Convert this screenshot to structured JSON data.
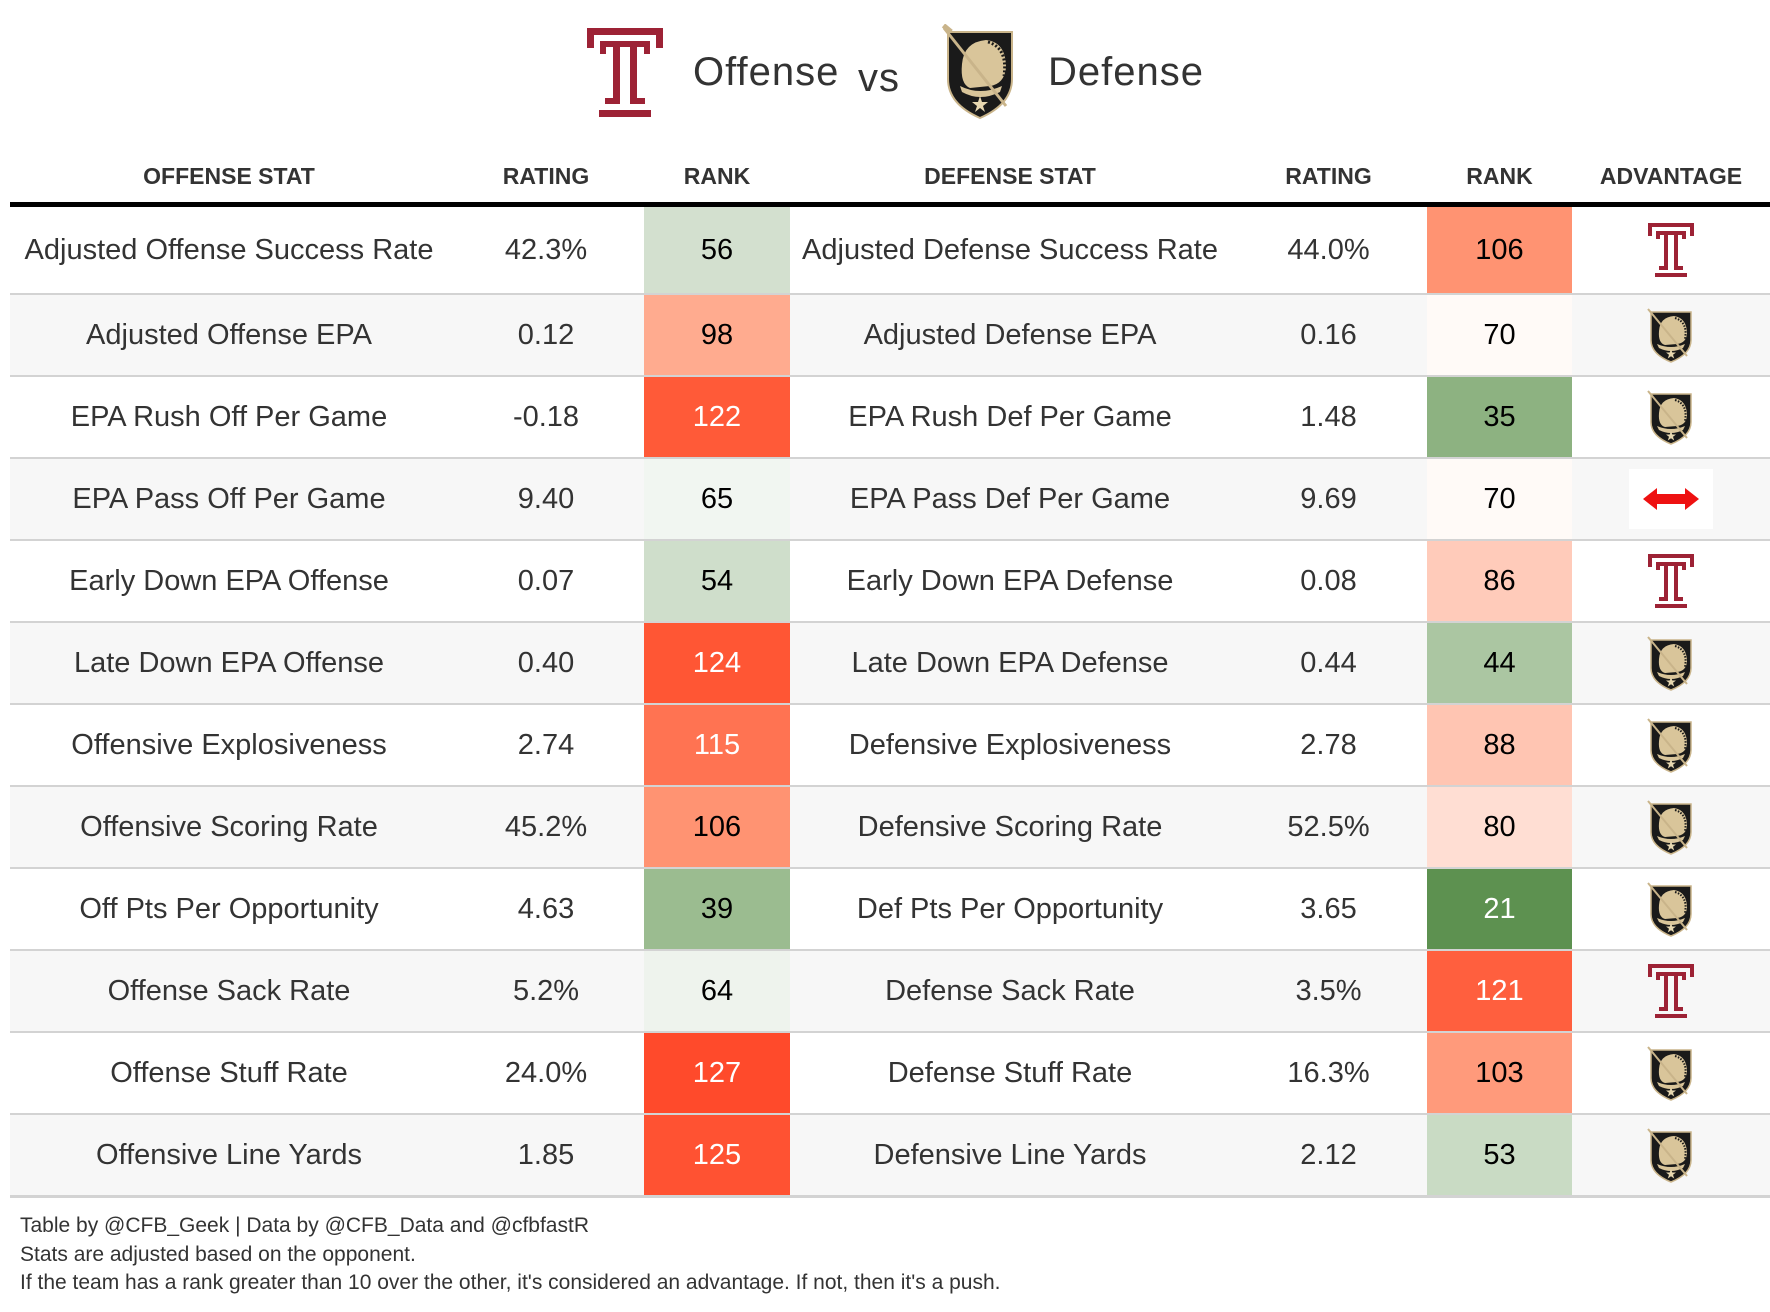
{
  "title": {
    "offense_team_logo": "temple-t-logo",
    "offense_word": "Offense",
    "vs_word": "vs",
    "defense_team_logo": "army-knight-logo",
    "defense_word": "Defense"
  },
  "columns": {
    "offense_stat": "OFFENSE STAT",
    "offense_rating": "RATING",
    "offense_rank": "RANK",
    "defense_stat": "DEFENSE STAT",
    "defense_rating": "RATING",
    "defense_rank": "RANK",
    "advantage": "ADVANTAGE"
  },
  "colors": {
    "temple_cherry": "#9d2235",
    "army_black": "#1a1a1a",
    "army_gold": "#d3bc8d",
    "push_arrow": "#ee1111",
    "header_rule": "#000000",
    "row_alt": "#f7f7f7"
  },
  "rows": [
    {
      "off_stat": "Adjusted Offense Success Rate",
      "off_rating": "42.3%",
      "off_rank": "56",
      "off_rank_color": "#d3e0cf",
      "off_rank_light": false,
      "def_stat": "Adjusted Defense Success Rate",
      "def_rating": "44.0%",
      "def_rank": "106",
      "def_rank_color": "#ff9372",
      "def_rank_light": false,
      "advantage": "temple"
    },
    {
      "off_stat": "Adjusted Offense EPA",
      "off_rating": "0.12",
      "off_rank": "98",
      "off_rank_color": "#ffab8f",
      "off_rank_light": false,
      "def_stat": "Adjusted Defense EPA",
      "def_rating": "0.16",
      "def_rank": "70",
      "def_rank_color": "#fffaf7",
      "def_rank_light": false,
      "advantage": "army"
    },
    {
      "off_stat": "EPA Rush Off Per Game",
      "off_rating": "-0.18",
      "off_rank": "122",
      "off_rank_color": "#ff5a38",
      "off_rank_light": true,
      "def_stat": "EPA Rush Def Per Game",
      "def_rating": "1.48",
      "def_rank": "35",
      "def_rank_color": "#8db281",
      "def_rank_light": false,
      "advantage": "army"
    },
    {
      "off_stat": "EPA Pass Off Per Game",
      "off_rating": "9.40",
      "off_rank": "65",
      "off_rank_color": "#f1f6f1",
      "off_rank_light": false,
      "def_stat": "EPA Pass Def Per Game",
      "def_rating": "9.69",
      "def_rank": "70",
      "def_rank_color": "#fffaf7",
      "def_rank_light": false,
      "advantage": "push"
    },
    {
      "off_stat": "Early Down EPA Offense",
      "off_rating": "0.07",
      "off_rank": "54",
      "off_rank_color": "#cfdecb",
      "off_rank_light": false,
      "def_stat": "Early Down EPA Defense",
      "def_rating": "0.08",
      "def_rank": "86",
      "def_rank_color": "#ffcbba",
      "def_rank_light": false,
      "advantage": "temple"
    },
    {
      "off_stat": "Late Down EPA Offense",
      "off_rating": "0.40",
      "off_rank": "124",
      "off_rank_color": "#ff5634",
      "off_rank_light": true,
      "def_stat": "Late Down EPA Defense",
      "def_rating": "0.44",
      "def_rank": "44",
      "def_rank_color": "#abc6a2",
      "def_rank_light": false,
      "advantage": "army"
    },
    {
      "off_stat": "Offensive Explosiveness",
      "off_rating": "2.74",
      "off_rank": "115",
      "off_rank_color": "#ff7352",
      "off_rank_light": true,
      "def_stat": "Defensive Explosiveness",
      "def_rating": "2.78",
      "def_rank": "88",
      "def_rank_color": "#ffc5b2",
      "def_rank_light": false,
      "advantage": "army"
    },
    {
      "off_stat": "Offensive Scoring Rate",
      "off_rating": "45.2%",
      "off_rank": "106",
      "off_rank_color": "#ff9372",
      "off_rank_light": false,
      "def_stat": "Defensive Scoring Rate",
      "def_rating": "52.5%",
      "def_rank": "80",
      "def_rank_color": "#ffded3",
      "def_rank_light": false,
      "advantage": "army"
    },
    {
      "off_stat": "Off Pts Per Opportunity",
      "off_rating": "4.63",
      "off_rank": "39",
      "off_rank_color": "#9bbc90",
      "off_rank_light": false,
      "def_stat": "Def Pts Per Opportunity",
      "def_rating": "3.65",
      "def_rank": "21",
      "def_rank_color": "#5d9150",
      "def_rank_light": true,
      "advantage": "army"
    },
    {
      "off_stat": "Offense Sack Rate",
      "off_rating": "5.2%",
      "off_rank": "64",
      "off_rank_color": "#eef3ed",
      "off_rank_light": false,
      "def_stat": "Defense Sack Rate",
      "def_rating": "3.5%",
      "def_rank": "121",
      "def_rank_color": "#ff5f3e",
      "def_rank_light": true,
      "advantage": "temple"
    },
    {
      "off_stat": "Offense Stuff Rate",
      "off_rating": "24.0%",
      "off_rank": "127",
      "off_rank_color": "#ff4a2b",
      "off_rank_light": true,
      "def_stat": "Defense Stuff Rate",
      "def_rating": "16.3%",
      "def_rank": "103",
      "def_rank_color": "#ff9a7b",
      "def_rank_light": false,
      "advantage": "army"
    },
    {
      "off_stat": "Offensive Line Yards",
      "off_rating": "1.85",
      "off_rank": "125",
      "off_rank_color": "#ff5232",
      "off_rank_light": true,
      "def_stat": "Defensive Line Yards",
      "def_rating": "2.12",
      "def_rank": "53",
      "def_rank_color": "#c9dbc4",
      "def_rank_light": false,
      "advantage": "army"
    }
  ],
  "footer": {
    "line1": "Table by @CFB_Geek | Data by @CFB_Data and @cfbfastR",
    "line2": "Stats are adjusted based on the opponent.",
    "line3": "If the team has a rank greater than 10 over the other, it's considered an advantage. If not, then it's a push."
  }
}
